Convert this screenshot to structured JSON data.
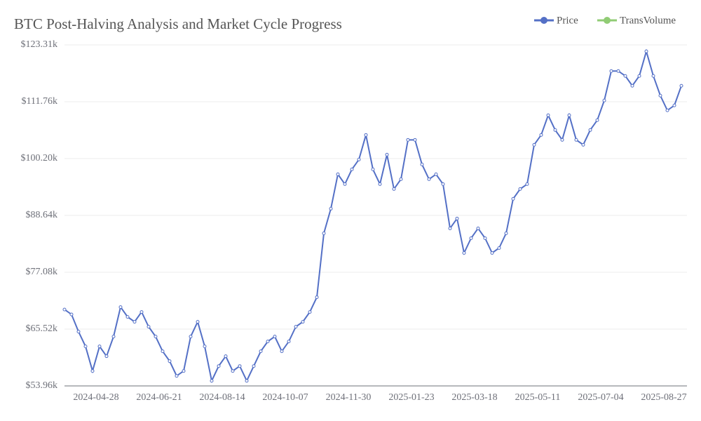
{
  "chart_data": {
    "type": "line",
    "title": "BTC Post-Halving Analysis and Market Cycle Progress",
    "categories": [
      null,
      null,
      null,
      null,
      "2024-04-28",
      null,
      null,
      null,
      null,
      null,
      null,
      null,
      null,
      "2024-06-21",
      null,
      null,
      null,
      null,
      null,
      null,
      null,
      null,
      "2024-08-14",
      null,
      null,
      null,
      null,
      null,
      null,
      null,
      null,
      "2024-10-07",
      null,
      null,
      null,
      null,
      null,
      null,
      null,
      null,
      "2024-11-30",
      null,
      null,
      null,
      null,
      null,
      null,
      null,
      null,
      "2025-01-23",
      null,
      null,
      null,
      null,
      null,
      null,
      null,
      null,
      "2025-03-18",
      null,
      null,
      null,
      null,
      null,
      null,
      null,
      null,
      "2025-05-11",
      null,
      null,
      null,
      null,
      null,
      null,
      null,
      null,
      "2025-07-04",
      null,
      null,
      null,
      null,
      null,
      null,
      null,
      null,
      "2025-08-27",
      null,
      null,
      null
    ],
    "series": [
      {
        "name": "Price",
        "color": "#5470c6",
        "values": [
          69.5,
          68.5,
          65,
          62,
          57,
          62,
          60,
          64,
          70,
          68,
          67,
          69,
          66,
          64,
          61,
          59,
          56,
          57,
          64,
          67,
          62,
          55,
          58,
          60,
          57,
          58,
          55,
          58,
          61,
          63,
          64,
          61,
          63,
          66,
          67,
          69,
          72,
          85,
          90,
          97,
          95,
          98,
          100,
          105,
          98,
          95,
          101,
          94,
          96,
          104,
          104,
          99,
          96,
          97,
          95,
          86,
          88,
          81,
          84,
          86,
          84,
          81,
          82,
          85,
          92,
          94,
          95,
          103,
          105,
          109,
          106,
          104,
          109,
          104,
          103,
          106,
          108,
          112,
          118,
          118,
          117,
          115,
          117,
          122,
          117,
          113,
          110,
          111,
          115
        ]
      },
      {
        "name": "TransVolume",
        "color": "#91cc75"
      }
    ],
    "ylim": [
      53.96,
      123.31
    ],
    "yticks": [
      {
        "value": 53.96,
        "label": "$53.96k"
      },
      {
        "value": 65.52,
        "label": "$65.52k"
      },
      {
        "value": 77.08,
        "label": "$77.08k"
      },
      {
        "value": 88.64,
        "label": "$88.64k"
      },
      {
        "value": 100.2,
        "label": "$100.20k"
      },
      {
        "value": 111.76,
        "label": "$111.76k"
      },
      {
        "value": 123.31,
        "label": "$123.31k"
      }
    ],
    "grid": true
  }
}
